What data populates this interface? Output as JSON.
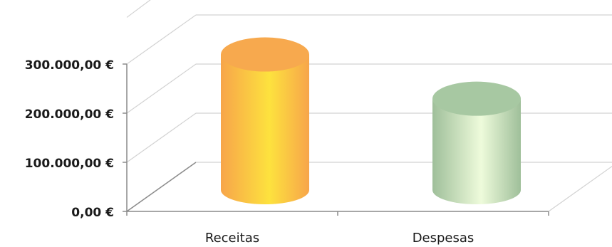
{
  "chart_data": {
    "type": "bar",
    "categories": [
      "Receitas",
      "Despesas"
    ],
    "values": [
      305000,
      215000
    ],
    "ylim": [
      0,
      300000
    ],
    "yticks": [
      "0,00 €",
      "100.000,00 €",
      "200.000,00 €",
      "300.000,00 €"
    ],
    "title": "",
    "xlabel": "",
    "ylabel": "",
    "grid": true,
    "legend": "none",
    "colors": {
      "Receitas": {
        "edge": "#f7a54a",
        "highlight": "#fde23e",
        "top": "#f7a94e"
      },
      "Despesas": {
        "edge": "#9fbf9a",
        "highlight": "#eefbdb",
        "top": "#a7c8a2"
      }
    }
  }
}
